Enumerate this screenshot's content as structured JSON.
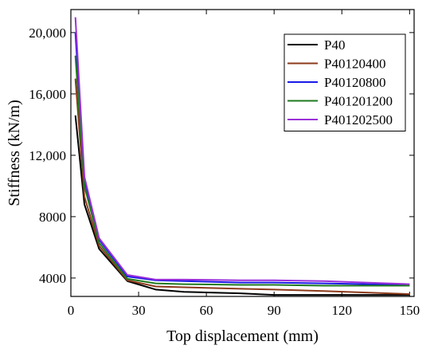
{
  "chart_data": {
    "type": "line",
    "title": "",
    "xlabel": "Top displacement (mm)",
    "ylabel": "Stiffness (kN/m)",
    "xlim": [
      0,
      152
    ],
    "ylim": [
      2800,
      21500
    ],
    "x_ticks": [
      0,
      30,
      60,
      90,
      120,
      150
    ],
    "y_ticks": [
      4000,
      8000,
      12000,
      16000,
      20000
    ],
    "x_tick_labels": [
      "0",
      "30",
      "60",
      "90",
      "120",
      "150"
    ],
    "y_tick_labels": [
      "4000",
      "8000",
      "12,000",
      "16,000",
      "20,000"
    ],
    "grid": false,
    "legend_position": "top-right",
    "series": [
      {
        "name": "P40",
        "color": "#000000",
        "points": [
          [
            2,
            14600
          ],
          [
            6,
            8800
          ],
          [
            12.5,
            5900
          ],
          [
            25,
            3800
          ],
          [
            37.5,
            3250
          ],
          [
            50,
            3100
          ],
          [
            75,
            3000
          ],
          [
            90,
            2900
          ],
          [
            112,
            2900
          ],
          [
            150,
            2900
          ]
        ]
      },
      {
        "name": "P40120400",
        "color": "#8B3A1A",
        "points": [
          [
            2,
            17000
          ],
          [
            6,
            9300
          ],
          [
            12.5,
            6100
          ],
          [
            25,
            3850
          ],
          [
            37.5,
            3450
          ],
          [
            50,
            3400
          ],
          [
            75,
            3300
          ],
          [
            90,
            3250
          ],
          [
            112,
            3150
          ],
          [
            150,
            2950
          ]
        ]
      },
      {
        "name": "P40120800",
        "color": "#1A1AE6",
        "points": [
          [
            2,
            20000
          ],
          [
            6,
            10400
          ],
          [
            12.5,
            6500
          ],
          [
            25,
            4100
          ],
          [
            37.5,
            3850
          ],
          [
            50,
            3800
          ],
          [
            75,
            3700
          ],
          [
            90,
            3700
          ],
          [
            112,
            3650
          ],
          [
            150,
            3550
          ]
        ]
      },
      {
        "name": "P401201200",
        "color": "#1F7A1F",
        "points": [
          [
            2,
            18500
          ],
          [
            6,
            10000
          ],
          [
            12.5,
            6300
          ],
          [
            25,
            3950
          ],
          [
            37.5,
            3650
          ],
          [
            50,
            3600
          ],
          [
            75,
            3550
          ],
          [
            90,
            3550
          ],
          [
            112,
            3500
          ],
          [
            150,
            3500
          ]
        ]
      },
      {
        "name": "P401202500",
        "color": "#9B30D9",
        "points": [
          [
            2,
            21000
          ],
          [
            6,
            10600
          ],
          [
            12.5,
            6600
          ],
          [
            25,
            4200
          ],
          [
            37.5,
            3900
          ],
          [
            50,
            3900
          ],
          [
            75,
            3850
          ],
          [
            90,
            3850
          ],
          [
            112,
            3800
          ],
          [
            150,
            3600
          ]
        ]
      }
    ]
  }
}
